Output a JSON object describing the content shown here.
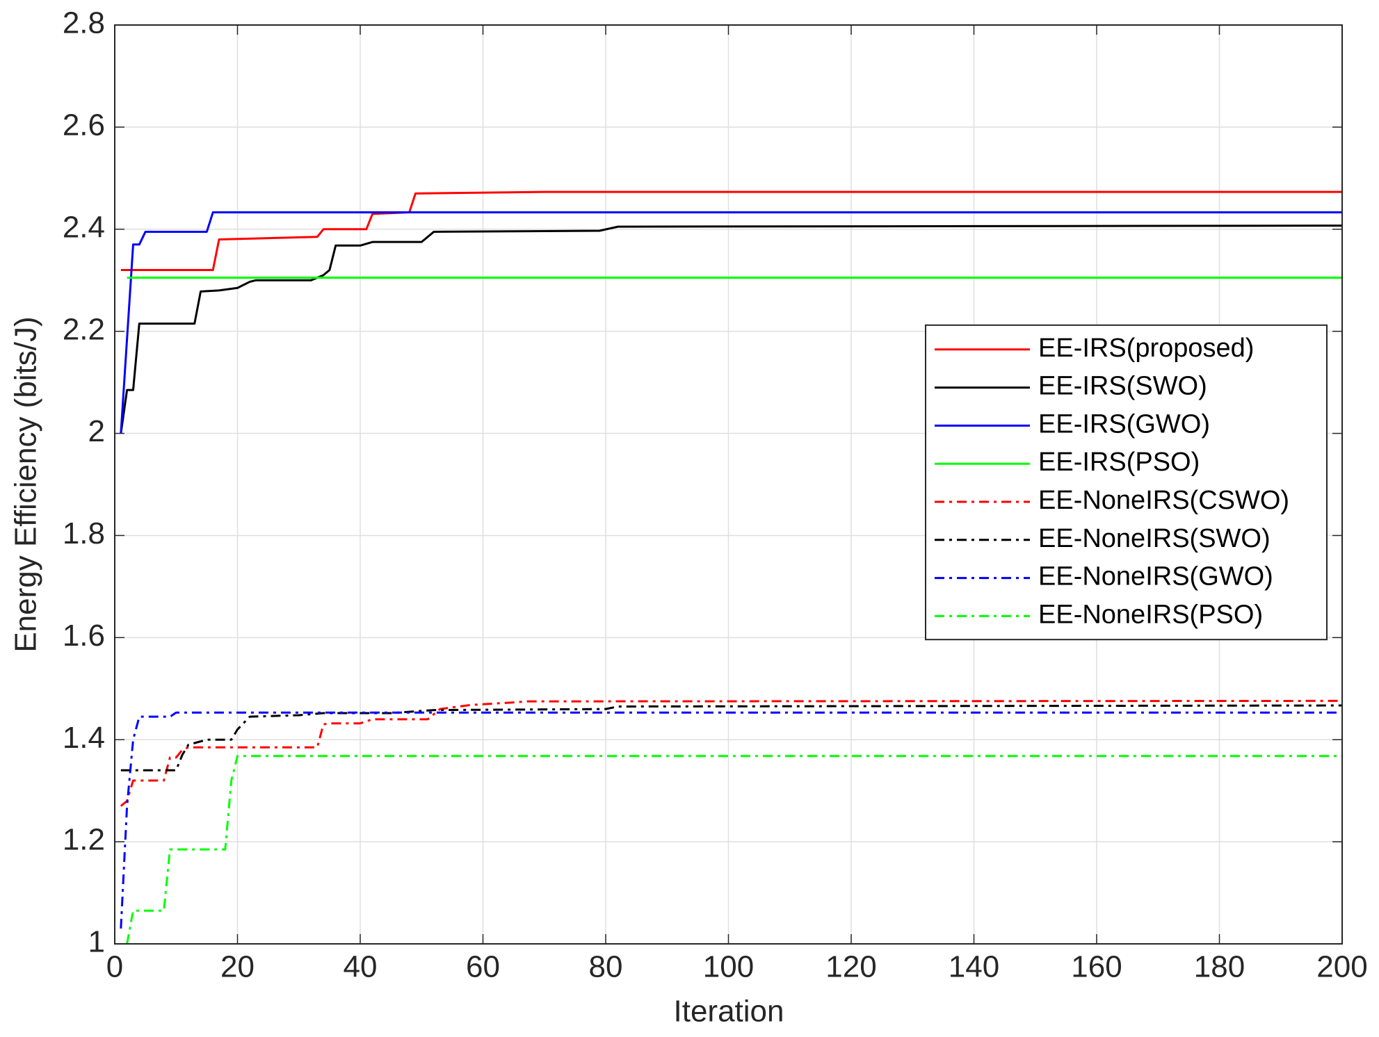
{
  "chart_data": {
    "type": "line",
    "xlabel": "Iteration",
    "ylabel": "Energy Efficiency (bits/J)",
    "xlim": [
      0,
      200
    ],
    "xticks": [
      0,
      20,
      40,
      60,
      80,
      100,
      120,
      140,
      160,
      180,
      200
    ],
    "ylim": [
      1,
      2.8
    ],
    "yticks": [
      1,
      1.2,
      1.4,
      1.6,
      1.8,
      2,
      2.2,
      2.4,
      2.6,
      2.8
    ],
    "grid": true,
    "legend": "east",
    "series": [
      {
        "name": "EE-IRS(proposed)",
        "color": "#ff0000",
        "linestyle": "solid",
        "x": [
          1,
          16,
          17,
          33,
          34,
          41,
          42,
          48,
          49,
          70,
          200
        ],
        "values": [
          2.32,
          2.32,
          2.38,
          2.385,
          2.4,
          2.4,
          2.43,
          2.433,
          2.47,
          2.473,
          2.473
        ]
      },
      {
        "name": "EE-IRS(SWO)",
        "color": "#000000",
        "linestyle": "solid",
        "x": [
          1,
          2,
          3,
          4,
          13,
          14,
          17,
          20,
          22,
          23,
          32,
          34,
          35,
          36,
          40,
          42,
          50,
          52,
          79,
          82,
          200
        ],
        "values": [
          2.0,
          2.085,
          2.085,
          2.215,
          2.215,
          2.278,
          2.28,
          2.285,
          2.297,
          2.3,
          2.3,
          2.31,
          2.32,
          2.368,
          2.368,
          2.375,
          2.375,
          2.395,
          2.397,
          2.405,
          2.407
        ]
      },
      {
        "name": "EE-IRS(GWO)",
        "color": "#0000ff",
        "linestyle": "solid",
        "x": [
          1,
          3,
          4,
          5,
          15,
          16,
          200
        ],
        "values": [
          2.0,
          2.37,
          2.37,
          2.395,
          2.395,
          2.433,
          2.433
        ]
      },
      {
        "name": "EE-IRS(PSO)",
        "color": "#00ff00",
        "linestyle": "solid",
        "x": [
          2,
          200
        ],
        "values": [
          2.305,
          2.305
        ]
      },
      {
        "name": "EE-NoneIRS(CSWO)",
        "color": "#ff0000",
        "linestyle": "dashdot",
        "x": [
          1,
          2,
          3,
          8,
          9,
          10,
          11,
          12,
          33,
          34,
          35,
          40,
          42,
          51,
          53,
          58,
          65,
          67,
          200
        ],
        "values": [
          1.27,
          1.28,
          1.32,
          1.32,
          1.365,
          1.365,
          1.38,
          1.385,
          1.385,
          1.43,
          1.432,
          1.432,
          1.44,
          1.44,
          1.46,
          1.468,
          1.473,
          1.475,
          1.476
        ]
      },
      {
        "name": "EE-NoneIRS(SWO)",
        "color": "#000000",
        "linestyle": "dashdot",
        "x": [
          1,
          10,
          11,
          12,
          15,
          19,
          20,
          22,
          30,
          34,
          45,
          52,
          80,
          82,
          200
        ],
        "values": [
          1.34,
          1.34,
          1.37,
          1.39,
          1.4,
          1.4,
          1.42,
          1.445,
          1.448,
          1.452,
          1.452,
          1.458,
          1.46,
          1.465,
          1.467
        ]
      },
      {
        "name": "EE-NoneIRS(GWO)",
        "color": "#0000ff",
        "linestyle": "dashdot",
        "x": [
          1,
          2,
          3,
          4,
          9,
          10,
          200
        ],
        "values": [
          1.03,
          1.27,
          1.4,
          1.445,
          1.445,
          1.453,
          1.453
        ]
      },
      {
        "name": "EE-NoneIRS(PSO)",
        "color": "#00ff00",
        "linestyle": "dashdot",
        "x": [
          2,
          3,
          8,
          9,
          18,
          19,
          20,
          200
        ],
        "values": [
          1.0,
          1.065,
          1.065,
          1.185,
          1.185,
          1.32,
          1.368,
          1.368
        ]
      }
    ]
  }
}
